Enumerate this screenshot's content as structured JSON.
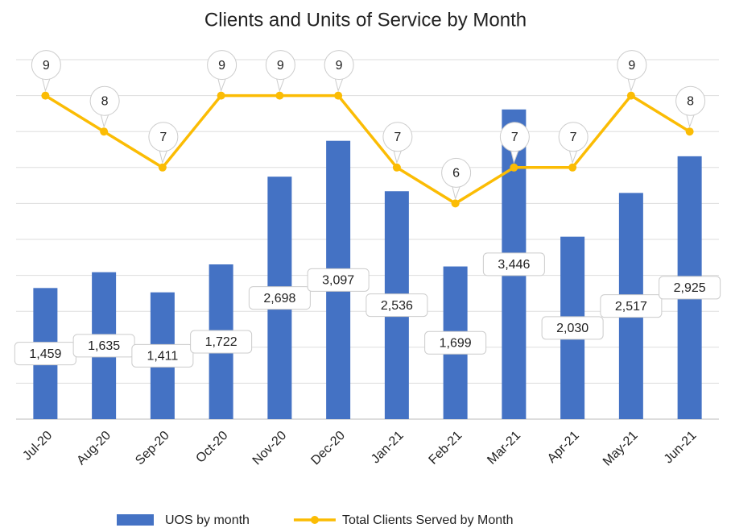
{
  "chart_data": {
    "type": "bar_line",
    "title": "Clients and Units of Service by Month",
    "categories": [
      "Jul-20",
      "Aug-20",
      "Sep-20",
      "Oct-20",
      "Nov-20",
      "Dec-20",
      "Jan-21",
      "Feb-21",
      "Mar-21",
      "Apr-21",
      "May-21",
      "Jun-21"
    ],
    "series": [
      {
        "name": "UOS by month",
        "type": "bar",
        "color": "#4472c4",
        "values": [
          1459,
          1635,
          1411,
          1722,
          2698,
          3097,
          2536,
          1699,
          3446,
          2030,
          2517,
          2925
        ],
        "value_labels": [
          "1,459",
          "1,635",
          "1,411",
          "1,722",
          "2,698",
          "3,097",
          "2,536",
          "1,699",
          "3,446",
          "2,030",
          "2,517",
          "2,925"
        ]
      },
      {
        "name": "Total Clients Served by Month",
        "type": "line",
        "color": "#fbbc04",
        "axis": "y2",
        "values": [
          9,
          8,
          7,
          9,
          9,
          9,
          7,
          6,
          7,
          7,
          9,
          8
        ]
      }
    ],
    "ylim": [
      0,
      4000
    ],
    "yticks": [
      0,
      400,
      800,
      1200,
      1600,
      2000,
      2400,
      2800,
      3200,
      3600,
      4000
    ],
    "y2lim": [
      0,
      10
    ],
    "grid": true,
    "legend": "bottom"
  }
}
